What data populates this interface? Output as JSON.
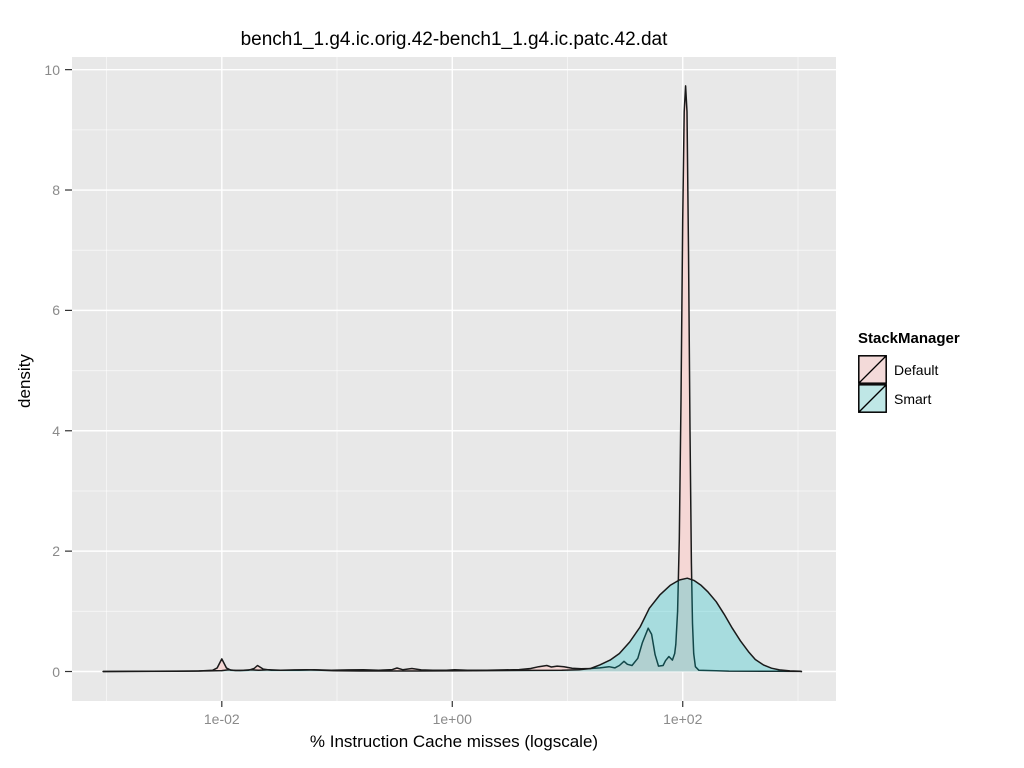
{
  "colors": {
    "background": "#ffffff",
    "panel_bg": "#e8e8e8",
    "grid_major": "#ffffff",
    "grid_minor": "rgba(255,255,255,0.55)",
    "outline": "#1a1a1a",
    "tick_mark": "#333333",
    "tick_label": "#8a8a8a",
    "default_fill": "#f5d7d5",
    "smart_fill": "rgba(0,191,196,0.28)"
  },
  "legend": {
    "title": "StackManager",
    "entries": [
      {
        "label": "Default",
        "fill": "#f3dad9"
      },
      {
        "label": "Smart",
        "fill": "#bfe7e6"
      }
    ]
  },
  "chart_data": {
    "type": "area",
    "geom": "density",
    "title": "bench1_1.g4.ic.orig.42-bench1_1.g4.ic.patc.42.dat",
    "xlabel": "% Instruction Cache misses (logscale)",
    "ylabel": "density",
    "x_scale": "log10",
    "xlim_log10": [
      -3.3,
      3.33
    ],
    "ylim": [
      -0.49,
      10.21
    ],
    "grid": true,
    "legend_position": "right",
    "x_ticks": [
      {
        "label": "1e-02",
        "log10": -2
      },
      {
        "label": "1e+00",
        "log10": 0
      },
      {
        "label": "1e+02",
        "log10": 2
      }
    ],
    "x_minor_ticks_log10": [
      -3,
      -1,
      1,
      3
    ],
    "y_ticks": [
      {
        "label": "0",
        "value": 0
      },
      {
        "label": "2",
        "value": 2
      },
      {
        "label": "4",
        "value": 4
      },
      {
        "label": "6",
        "value": 6
      },
      {
        "label": "8",
        "value": 8
      },
      {
        "label": "10",
        "value": 10
      }
    ],
    "y_minor_ticks": [
      1,
      3,
      5,
      7,
      9
    ],
    "series": [
      {
        "name": "Default",
        "fill_key": "default_fill",
        "points": [
          [
            -3.03,
            0
          ],
          [
            -2.6,
            0.003
          ],
          [
            -2.2,
            0.008
          ],
          [
            -2.08,
            0.02
          ],
          [
            -2.04,
            0.06
          ],
          [
            -2.0,
            0.21
          ],
          [
            -1.96,
            0.06
          ],
          [
            -1.92,
            0.02
          ],
          [
            -1.84,
            0.015
          ],
          [
            -1.77,
            0.02
          ],
          [
            -1.72,
            0.05
          ],
          [
            -1.69,
            0.1
          ],
          [
            -1.64,
            0.04
          ],
          [
            -1.57,
            0.02
          ],
          [
            -1.45,
            0.02
          ],
          [
            -1.33,
            0.022
          ],
          [
            -1.2,
            0.03
          ],
          [
            -1.05,
            0.02
          ],
          [
            -0.9,
            0.026
          ],
          [
            -0.77,
            0.03
          ],
          [
            -0.64,
            0.02
          ],
          [
            -0.52,
            0.032
          ],
          [
            -0.48,
            0.058
          ],
          [
            -0.43,
            0.03
          ],
          [
            -0.35,
            0.05
          ],
          [
            -0.27,
            0.026
          ],
          [
            -0.17,
            0.02
          ],
          [
            -0.05,
            0.022
          ],
          [
            0.02,
            0.03
          ],
          [
            0.13,
            0.02
          ],
          [
            0.3,
            0.02
          ],
          [
            0.45,
            0.026
          ],
          [
            0.58,
            0.032
          ],
          [
            0.68,
            0.05
          ],
          [
            0.75,
            0.08
          ],
          [
            0.82,
            0.1
          ],
          [
            0.86,
            0.075
          ],
          [
            0.91,
            0.09
          ],
          [
            0.97,
            0.08
          ],
          [
            1.04,
            0.055
          ],
          [
            1.12,
            0.045
          ],
          [
            1.2,
            0.05
          ],
          [
            1.28,
            0.06
          ],
          [
            1.36,
            0.08
          ],
          [
            1.41,
            0.06
          ],
          [
            1.45,
            0.1
          ],
          [
            1.49,
            0.17
          ],
          [
            1.52,
            0.12
          ],
          [
            1.56,
            0.1
          ],
          [
            1.61,
            0.22
          ],
          [
            1.65,
            0.48
          ],
          [
            1.7,
            0.72
          ],
          [
            1.73,
            0.62
          ],
          [
            1.76,
            0.28
          ],
          [
            1.79,
            0.09
          ],
          [
            1.83,
            0.1
          ],
          [
            1.85,
            0.18
          ],
          [
            1.88,
            0.25
          ],
          [
            1.91,
            0.19
          ],
          [
            1.93,
            0.3
          ],
          [
            1.94,
            0.45
          ],
          [
            1.955,
            1.0
          ],
          [
            1.97,
            2.2
          ],
          [
            1.985,
            4.5
          ],
          [
            2.0,
            7.5
          ],
          [
            2.013,
            9.3
          ],
          [
            2.025,
            9.73
          ],
          [
            2.037,
            9.3
          ],
          [
            2.05,
            7.0
          ],
          [
            2.063,
            4.0
          ],
          [
            2.075,
            1.8
          ],
          [
            2.085,
            0.8
          ],
          [
            2.095,
            0.3
          ],
          [
            2.11,
            0.08
          ],
          [
            2.14,
            0.02
          ],
          [
            2.4,
            0.006
          ],
          [
            2.8,
            0.003
          ],
          [
            3.02,
            0.001
          ],
          [
            3.03,
            0
          ]
        ]
      },
      {
        "name": "Smart",
        "fill_key": "smart_fill",
        "points": [
          [
            -3.03,
            0
          ],
          [
            -2.4,
            0.004
          ],
          [
            -2.1,
            0.01
          ],
          [
            -2.0,
            0.015
          ],
          [
            -1.94,
            0.03
          ],
          [
            -1.88,
            0.016
          ],
          [
            -1.81,
            0.022
          ],
          [
            -1.75,
            0.03
          ],
          [
            -1.68,
            0.02
          ],
          [
            -1.59,
            0.03
          ],
          [
            -1.49,
            0.02
          ],
          [
            -1.37,
            0.026
          ],
          [
            -1.26,
            0.03
          ],
          [
            -1.16,
            0.024
          ],
          [
            -1.03,
            0.014
          ],
          [
            -0.8,
            0.008
          ],
          [
            -0.3,
            0.008
          ],
          [
            0.2,
            0.012
          ],
          [
            0.65,
            0.018
          ],
          [
            0.95,
            0.022
          ],
          [
            1.1,
            0.03
          ],
          [
            1.2,
            0.05
          ],
          [
            1.28,
            0.11
          ],
          [
            1.37,
            0.19
          ],
          [
            1.45,
            0.3
          ],
          [
            1.54,
            0.49
          ],
          [
            1.63,
            0.74
          ],
          [
            1.71,
            1.05
          ],
          [
            1.8,
            1.27
          ],
          [
            1.89,
            1.43
          ],
          [
            1.97,
            1.52
          ],
          [
            2.04,
            1.55
          ],
          [
            2.1,
            1.51
          ],
          [
            2.16,
            1.43
          ],
          [
            2.22,
            1.32
          ],
          [
            2.29,
            1.16
          ],
          [
            2.36,
            0.95
          ],
          [
            2.43,
            0.72
          ],
          [
            2.5,
            0.51
          ],
          [
            2.57,
            0.33
          ],
          [
            2.63,
            0.2
          ],
          [
            2.7,
            0.11
          ],
          [
            2.77,
            0.055
          ],
          [
            2.84,
            0.026
          ],
          [
            2.93,
            0.01
          ],
          [
            3.02,
            0.003
          ],
          [
            3.03,
            0
          ]
        ]
      }
    ]
  }
}
